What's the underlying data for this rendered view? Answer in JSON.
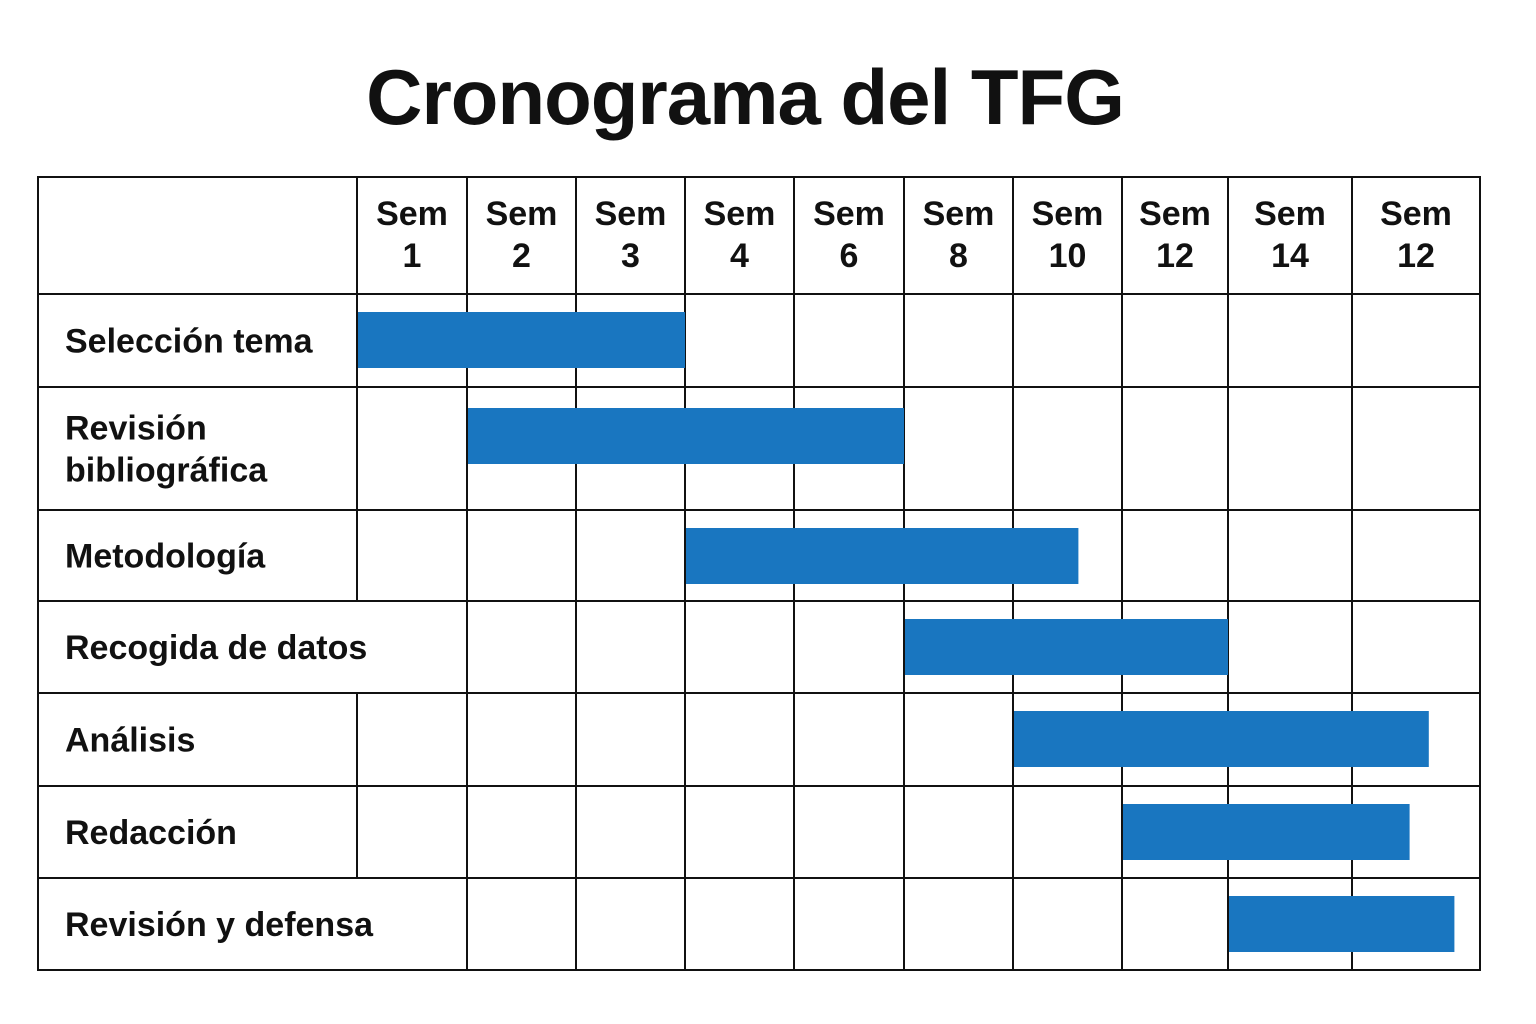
{
  "title": "Cronograma del TFG",
  "chart_data": {
    "type": "gantt",
    "title": "Cronograma del TFG",
    "columns": [
      [
        "Sem",
        "1"
      ],
      [
        "Sem",
        "2"
      ],
      [
        "Sem",
        "3"
      ],
      [
        "Sem",
        "4"
      ],
      [
        "Sem",
        "6"
      ],
      [
        "Sem",
        "8"
      ],
      [
        "Sem",
        "10"
      ],
      [
        "Sem",
        "12"
      ],
      [
        "Sem",
        "14"
      ],
      [
        "Sem",
        "12"
      ]
    ],
    "tasks": [
      {
        "name": [
          "Selección tema"
        ],
        "start": 0,
        "end": 3
      },
      {
        "name": [
          "Revisión",
          "bibliográfica"
        ],
        "start": 1,
        "end": 5
      },
      {
        "name": [
          "Metodología"
        ],
        "start": 3,
        "end": 6.6
      },
      {
        "name": [
          "Recogida de datos"
        ],
        "start": 5,
        "end": 8
      },
      {
        "name": [
          "Análisis"
        ],
        "start": 6,
        "end": 9.6
      },
      {
        "name": [
          "Redacción"
        ],
        "start": 7,
        "end": 9.45
      },
      {
        "name": [
          "Revisión y defensa"
        ],
        "start": 8,
        "end": 9.8
      }
    ],
    "bar_color": "#1976c0",
    "grid": true
  }
}
